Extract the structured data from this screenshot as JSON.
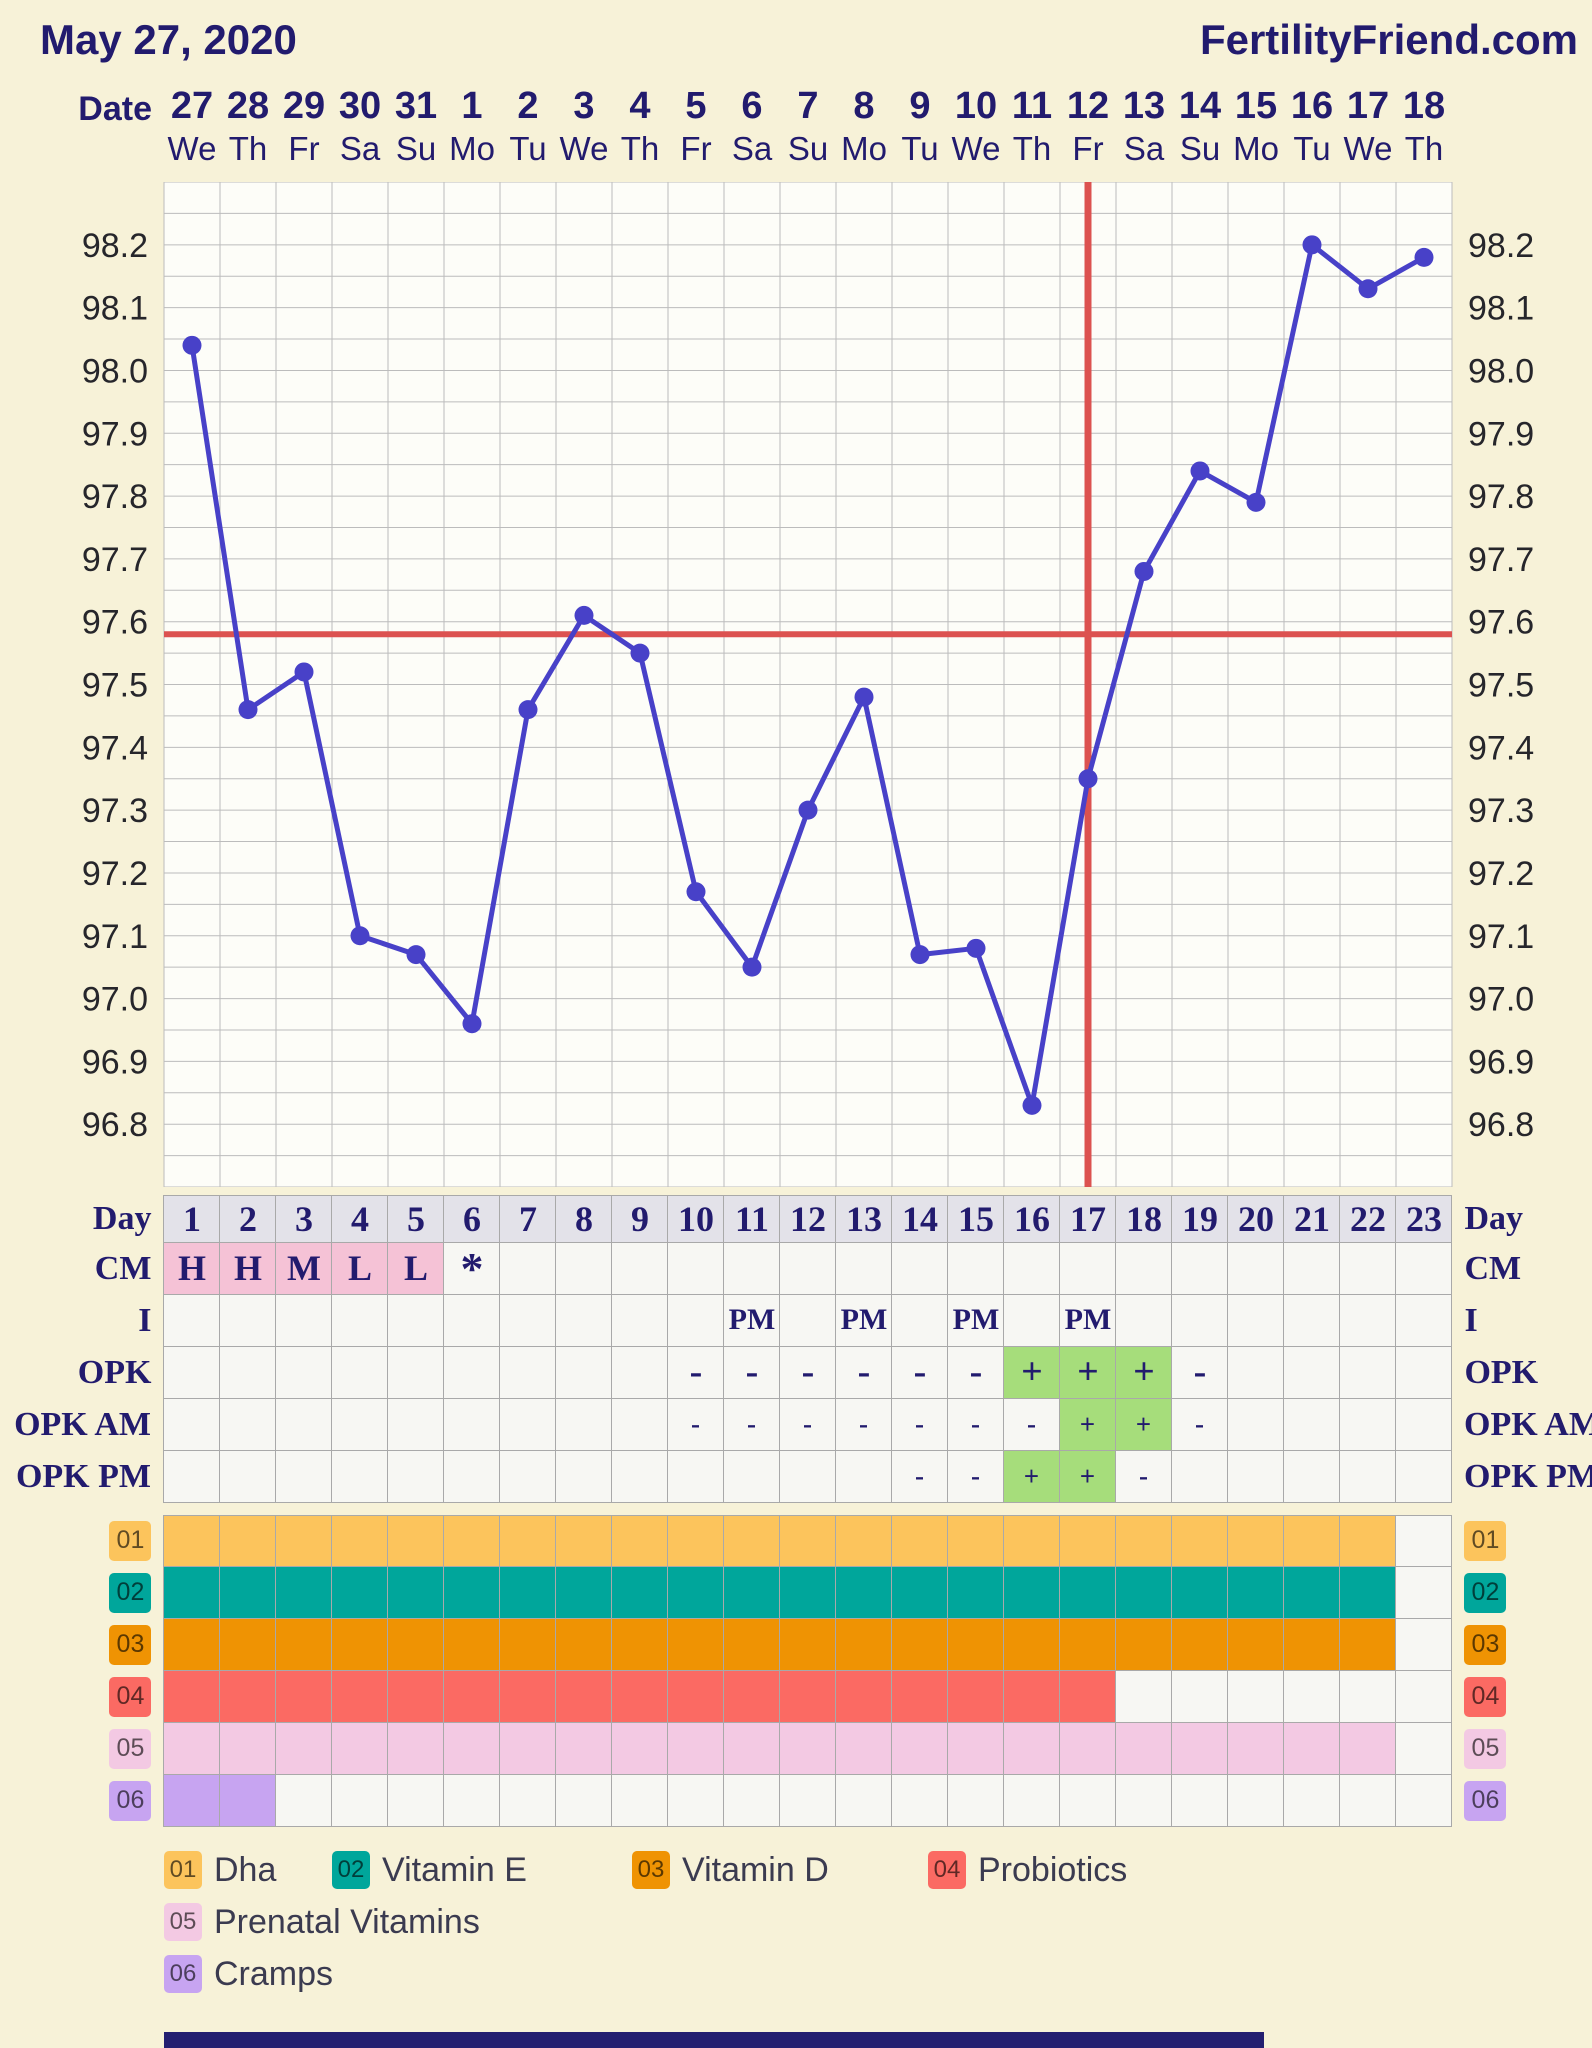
{
  "header": {
    "date": "May 27, 2020",
    "site": "FertilityFriend.com"
  },
  "axis": {
    "date_label": "Date",
    "dates": [
      "27",
      "28",
      "29",
      "30",
      "31",
      "1",
      "2",
      "3",
      "4",
      "5",
      "6",
      "7",
      "8",
      "9",
      "10",
      "11",
      "12",
      "13",
      "14",
      "15",
      "16",
      "17",
      "18"
    ],
    "weekdays": [
      "We",
      "Th",
      "Fr",
      "Sa",
      "Su",
      "Mo",
      "Tu",
      "We",
      "Th",
      "Fr",
      "Sa",
      "Su",
      "Mo",
      "Tu",
      "We",
      "Th",
      "Fr",
      "Sa",
      "Su",
      "Mo",
      "Tu",
      "We",
      "Th"
    ]
  },
  "chart_data": {
    "type": "line",
    "x_days": [
      1,
      2,
      3,
      4,
      5,
      6,
      7,
      8,
      9,
      10,
      11,
      12,
      13,
      14,
      15,
      16,
      17,
      18,
      19,
      20,
      21,
      22,
      23
    ],
    "temps": [
      98.04,
      97.46,
      97.52,
      97.1,
      97.07,
      96.96,
      97.46,
      97.61,
      97.55,
      97.17,
      97.05,
      97.3,
      97.48,
      97.07,
      97.08,
      96.83,
      97.35,
      97.68,
      97.84,
      97.79,
      98.2,
      98.13,
      98.18
    ],
    "ylim": [
      96.7,
      98.3
    ],
    "yticks": [
      98.2,
      98.1,
      98.0,
      97.9,
      97.8,
      97.7,
      97.6,
      97.5,
      97.4,
      97.3,
      97.2,
      97.1,
      97.0,
      96.9,
      96.8
    ],
    "grid_step": 0.05,
    "coverline": 97.58,
    "ovulation_line_day": 17,
    "line_color": "#4841c8",
    "crosshair_color": "#dc5250",
    "grid_color": "#bcbcbc",
    "plot_bg": "#fdfdf8",
    "legend_position": "none",
    "grid": "on"
  },
  "rows": [
    {
      "id": "day",
      "label": "Day",
      "style": "day",
      "values": [
        "1",
        "2",
        "3",
        "4",
        "5",
        "6",
        "7",
        "8",
        "9",
        "10",
        "11",
        "12",
        "13",
        "14",
        "15",
        "16",
        "17",
        "18",
        "19",
        "20",
        "21",
        "22",
        "23"
      ]
    },
    {
      "id": "cm",
      "label": "CM",
      "style": "cm",
      "values": [
        "H",
        "H",
        "M",
        "L",
        "L",
        "*",
        "",
        "",
        "",
        "",
        "",
        "",
        "",
        "",
        "",
        "",
        "",
        "",
        "",
        "",
        "",
        "",
        ""
      ]
    },
    {
      "id": "i",
      "label": "I",
      "style": "i",
      "values": [
        "",
        "",
        "",
        "",
        "",
        "",
        "",
        "",
        "",
        "",
        "PM",
        "",
        "PM",
        "",
        "PM",
        "",
        "PM",
        "",
        "",
        "",
        "",
        "",
        ""
      ]
    },
    {
      "id": "opk",
      "label": "OPK",
      "style": "opk",
      "values": [
        "",
        "",
        "",
        "",
        "",
        "",
        "",
        "",
        "",
        "-",
        "-",
        "-",
        "-",
        "-",
        "-",
        "+",
        "+",
        "+",
        "-",
        "",
        "",
        "",
        ""
      ]
    },
    {
      "id": "opk-am",
      "label": "OPK AM",
      "style": "opk-small",
      "values": [
        "",
        "",
        "",
        "",
        "",
        "",
        "",
        "",
        "",
        "-",
        "-",
        "-",
        "-",
        "-",
        "-",
        "-",
        "+",
        "+",
        "-",
        "",
        "",
        "",
        ""
      ]
    },
    {
      "id": "opk-pm",
      "label": "OPK PM",
      "style": "opk-small",
      "values": [
        "",
        "",
        "",
        "",
        "",
        "",
        "",
        "",
        "",
        "",
        "",
        "",
        "",
        "-",
        "-",
        "+",
        "+",
        "-",
        "",
        "",
        "",
        "",
        ""
      ]
    }
  ],
  "medications": [
    {
      "id": "01",
      "name": "Dha",
      "color": "#fcc45c",
      "filled_days": 22
    },
    {
      "id": "02",
      "name": "Vitamin E",
      "color": "#00a69b",
      "filled_days": 22
    },
    {
      "id": "03",
      "name": "Vitamin D",
      "color": "#ef9303",
      "filled_days": 22
    },
    {
      "id": "04",
      "name": "Probiotics",
      "color": "#fb6a63",
      "filled_days": 17
    },
    {
      "id": "05",
      "name": "Prenatal Vitamins",
      "color": "#f3c9e3",
      "filled_days": 22
    },
    {
      "id": "06",
      "name": "Cramps",
      "color": "#c7a4f1",
      "filled_days": 2
    }
  ],
  "colors": {
    "navy": "#221b6e",
    "positive_green": "#a6dd7b",
    "cm_pink": "#f5c2d6",
    "day_row_bg": "#e3e2e9",
    "footer_bar": "#241f70"
  }
}
